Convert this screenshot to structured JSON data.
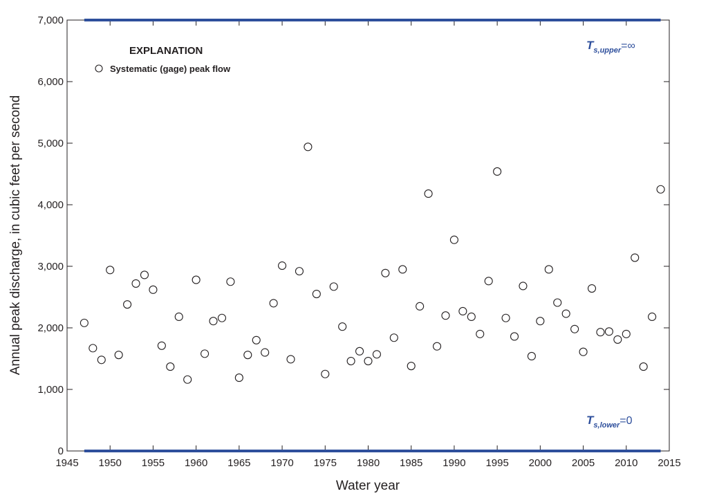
{
  "chart_data": {
    "type": "scatter",
    "xlabel": "Water year",
    "ylabel": "Annual peak discharge, in cubic feet per second",
    "xlim": [
      1945,
      2015
    ],
    "ylim": [
      0,
      7000
    ],
    "x_ticks": [
      "1945",
      "1950",
      "1955",
      "1960",
      "1965",
      "1970",
      "1975",
      "1980",
      "1985",
      "1990",
      "1995",
      "2000",
      "2005",
      "2010",
      "2015"
    ],
    "y_ticks": [
      "0",
      "1,000",
      "2,000",
      "3,000",
      "4,000",
      "5,000",
      "6,000",
      "7,000"
    ],
    "legend": {
      "title": "EXPLANATION",
      "position": "top-left",
      "entries": [
        {
          "label": "Systematic (gage) peak flow",
          "marker": "open-circle"
        }
      ]
    },
    "thresholds": {
      "upper": {
        "symbol": "T",
        "subscript": "s,upper",
        "value_text": "=∞",
        "y": 7000
      },
      "lower": {
        "symbol": "T",
        "subscript": "s,lower",
        "value_text": "=0",
        "y": 0
      },
      "x_range": [
        1947,
        2014
      ],
      "color": "#2e4f9c"
    },
    "grid": false,
    "series": [
      {
        "name": "Systematic (gage) peak flow",
        "x": [
          1947,
          1948,
          1949,
          1950,
          1951,
          1952,
          1953,
          1954,
          1955,
          1956,
          1957,
          1958,
          1959,
          1960,
          1961,
          1962,
          1963,
          1964,
          1965,
          1966,
          1967,
          1968,
          1969,
          1970,
          1971,
          1972,
          1973,
          1974,
          1975,
          1976,
          1977,
          1978,
          1979,
          1980,
          1981,
          1982,
          1983,
          1984,
          1985,
          1986,
          1987,
          1988,
          1989,
          1990,
          1991,
          1992,
          1993,
          1994,
          1995,
          1996,
          1997,
          1998,
          1999,
          2000,
          2001,
          2002,
          2003,
          2004,
          2005,
          2006,
          2007,
          2008,
          2009,
          2010,
          2011,
          2012,
          2013,
          2014
        ],
        "y": [
          2080,
          1670,
          1480,
          2940,
          1560,
          2380,
          2720,
          2860,
          2620,
          1710,
          1370,
          2180,
          1160,
          2780,
          1580,
          2110,
          2160,
          2750,
          1190,
          1560,
          1800,
          1600,
          2400,
          3010,
          1490,
          2920,
          4940,
          2550,
          1250,
          2670,
          2020,
          1460,
          1620,
          1460,
          1570,
          2890,
          1840,
          2950,
          1380,
          2350,
          4180,
          1700,
          2200,
          3430,
          2270,
          2180,
          1900,
          2760,
          4540,
          2160,
          1860,
          2680,
          1540,
          2110,
          2950,
          2410,
          2230,
          1980,
          1610,
          2640,
          1930,
          1940,
          1810,
          1900,
          3140,
          1370,
          2180,
          4250
        ]
      }
    ]
  }
}
